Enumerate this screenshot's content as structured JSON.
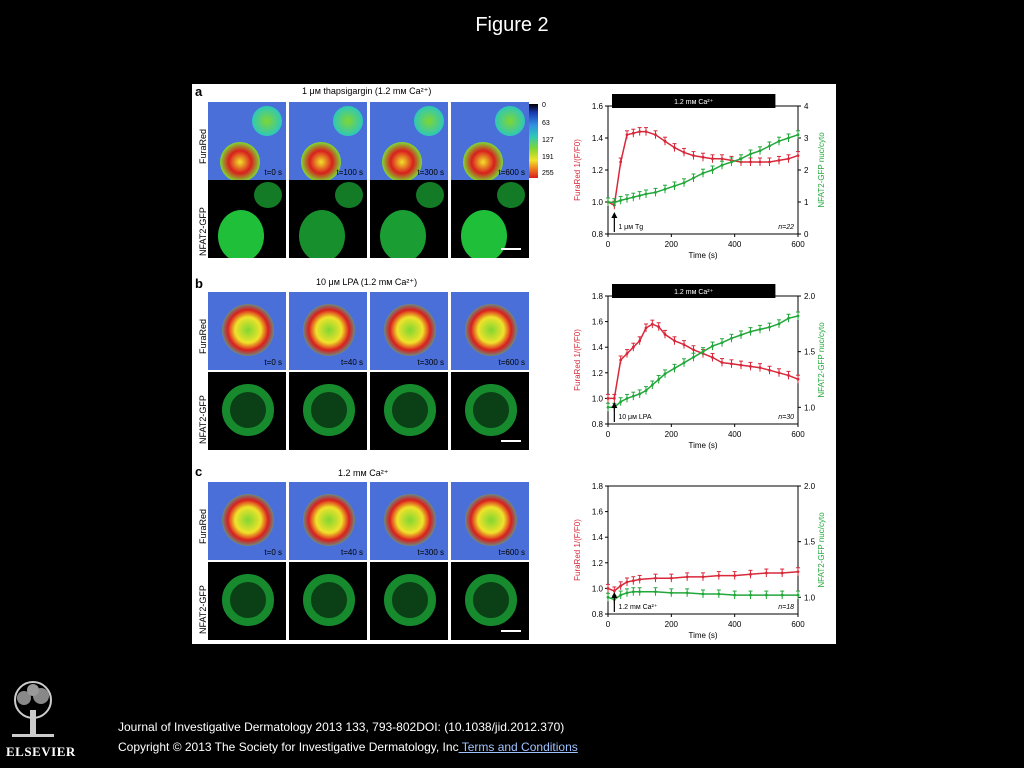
{
  "slide_title": "Figure 2",
  "colorbar_ticks": [
    "0",
    "63",
    "127",
    "191",
    "255"
  ],
  "row_labels": {
    "fura": "FuraRed",
    "gfp": "NFAT2-GFP"
  },
  "panels": [
    {
      "label": "a",
      "title": "1 μм thapsigargin (1.2 mм Ca²⁺)",
      "times": [
        "t=0 s",
        "t=100 s",
        "t=300 s",
        "t=600 s"
      ]
    },
    {
      "label": "b",
      "title": "10 μм LPA (1.2 mм Ca²⁺)",
      "times": [
        "t=0 s",
        "t=40 s",
        "t=300 s",
        "t=600 s"
      ]
    },
    {
      "label": "c",
      "title": "1.2 mм Ca²⁺",
      "times": [
        "t=0 s",
        "t=40 s",
        "t=300 s",
        "t=600 s"
      ]
    }
  ],
  "footer": {
    "publisher": "ELSEVIER",
    "citation": "Journal of Investigative Dermatology 2013 133, 793-802DOI: (10.1038/jid.2012.370)",
    "copyright": "Copyright © 2013 The Society for Investigative Dermatology, Inc",
    "terms_link": " Terms and Conditions"
  },
  "colors": {
    "red_series": "#d8283a",
    "green_series": "#22a83a",
    "fura_bg": "#4a6fd8"
  },
  "chart_data": [
    {
      "type": "line",
      "bar_label": "1.2 mм Ca²⁺",
      "xlabel": "Time (s)",
      "ylabel": "FuraRed 1/(F/F0)",
      "y2label": "NFAT2-GFP nuc/cyto",
      "xlim": [
        0,
        600
      ],
      "ylim": [
        0.8,
        1.6
      ],
      "y2lim": [
        0,
        4
      ],
      "xticks": [
        0,
        200,
        400,
        600
      ],
      "yticks": [
        0.8,
        1.0,
        1.2,
        1.4,
        1.6
      ],
      "y2ticks": [
        0,
        1,
        2,
        3,
        4
      ],
      "annotation": "1 μм Tg",
      "n_label": "n=22",
      "series": [
        {
          "axis": "left",
          "color": "#d8283a",
          "x": [
            0,
            20,
            40,
            60,
            80,
            100,
            120,
            150,
            180,
            210,
            240,
            270,
            300,
            330,
            360,
            390,
            420,
            450,
            480,
            510,
            540,
            570,
            600
          ],
          "y": [
            1.0,
            0.98,
            1.25,
            1.42,
            1.43,
            1.44,
            1.44,
            1.42,
            1.38,
            1.34,
            1.31,
            1.29,
            1.28,
            1.27,
            1.27,
            1.26,
            1.25,
            1.25,
            1.25,
            1.25,
            1.26,
            1.27,
            1.29
          ]
        },
        {
          "axis": "right",
          "color": "#22a83a",
          "x": [
            0,
            20,
            40,
            60,
            80,
            100,
            120,
            150,
            180,
            210,
            240,
            270,
            300,
            330,
            360,
            390,
            420,
            450,
            480,
            510,
            540,
            570,
            600
          ],
          "y": [
            1.0,
            0.98,
            1.05,
            1.1,
            1.15,
            1.2,
            1.25,
            1.3,
            1.4,
            1.5,
            1.6,
            1.75,
            1.9,
            2.0,
            2.15,
            2.25,
            2.35,
            2.5,
            2.6,
            2.75,
            2.9,
            3.0,
            3.1
          ]
        }
      ]
    },
    {
      "type": "line",
      "bar_label": "1.2 mм Ca²⁺",
      "xlabel": "Time (s)",
      "ylabel": "FuraRed 1/(F/F0)",
      "y2label": "NFAT2-GFP nuc/cyto",
      "xlim": [
        0,
        600
      ],
      "ylim": [
        0.8,
        1.8
      ],
      "y2lim": [
        0.85,
        2.0
      ],
      "xticks": [
        0,
        200,
        400,
        600
      ],
      "yticks": [
        0.8,
        1.0,
        1.2,
        1.4,
        1.6,
        1.8
      ],
      "y2ticks": [
        1.0,
        1.5,
        2.0
      ],
      "annotation": "10 μм LPA",
      "n_label": "n=30",
      "series": [
        {
          "axis": "left",
          "color": "#d8283a",
          "x": [
            0,
            20,
            40,
            60,
            80,
            100,
            120,
            140,
            160,
            180,
            210,
            240,
            270,
            300,
            330,
            360,
            390,
            420,
            450,
            480,
            510,
            540,
            570,
            600
          ],
          "y": [
            1.0,
            1.0,
            1.3,
            1.35,
            1.4,
            1.45,
            1.55,
            1.58,
            1.56,
            1.5,
            1.45,
            1.42,
            1.38,
            1.35,
            1.32,
            1.28,
            1.27,
            1.26,
            1.25,
            1.24,
            1.22,
            1.2,
            1.18,
            1.15
          ]
        },
        {
          "axis": "right",
          "color": "#22a83a",
          "x": [
            0,
            20,
            40,
            60,
            80,
            100,
            120,
            140,
            160,
            180,
            210,
            240,
            270,
            300,
            330,
            360,
            390,
            420,
            450,
            480,
            510,
            540,
            570,
            600
          ],
          "y": [
            1.0,
            1.0,
            1.05,
            1.08,
            1.1,
            1.12,
            1.15,
            1.2,
            1.25,
            1.3,
            1.35,
            1.4,
            1.45,
            1.5,
            1.55,
            1.58,
            1.62,
            1.65,
            1.68,
            1.7,
            1.72,
            1.75,
            1.8,
            1.82
          ]
        }
      ]
    },
    {
      "type": "line",
      "xlabel": "Time (s)",
      "ylabel": "FuraRed 1/(F/F0)",
      "y2label": "NFAT2-GFP nuc/cyto",
      "xlim": [
        0,
        600
      ],
      "ylim": [
        0.8,
        1.8
      ],
      "y2lim": [
        0.85,
        2.0
      ],
      "xticks": [
        0,
        200,
        400,
        600
      ],
      "yticks": [
        0.8,
        1.0,
        1.2,
        1.4,
        1.6,
        1.8
      ],
      "y2ticks": [
        1.0,
        1.5,
        2.0
      ],
      "annotation": "1.2 mм Ca²⁺",
      "n_label": "n=18",
      "series": [
        {
          "axis": "left",
          "color": "#d8283a",
          "x": [
            0,
            20,
            40,
            60,
            80,
            100,
            150,
            200,
            250,
            300,
            350,
            400,
            450,
            500,
            550,
            600
          ],
          "y": [
            1.0,
            0.98,
            1.02,
            1.05,
            1.06,
            1.07,
            1.08,
            1.08,
            1.09,
            1.09,
            1.1,
            1.1,
            1.11,
            1.12,
            1.12,
            1.13
          ]
        },
        {
          "axis": "right",
          "color": "#22a83a",
          "x": [
            0,
            20,
            40,
            60,
            80,
            100,
            150,
            200,
            250,
            300,
            350,
            400,
            450,
            500,
            550,
            600
          ],
          "y": [
            1.0,
            0.98,
            1.02,
            1.04,
            1.05,
            1.05,
            1.05,
            1.04,
            1.04,
            1.03,
            1.03,
            1.02,
            1.02,
            1.02,
            1.02,
            1.02
          ]
        }
      ]
    }
  ]
}
